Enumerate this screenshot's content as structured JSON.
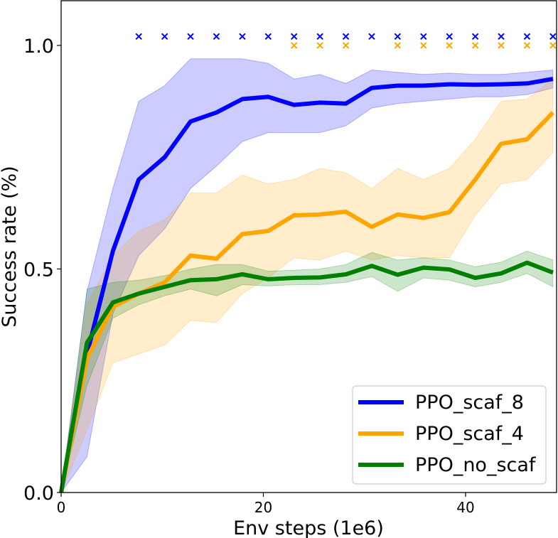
{
  "chart_data": {
    "type": "line",
    "title": "",
    "xlabel": "Env steps (1e6)",
    "ylabel": "Success rate (%)",
    "xlim": [
      0,
      49
    ],
    "ylim": [
      0.0,
      1.1
    ],
    "xticks": [
      0,
      20,
      40
    ],
    "yticks": [
      0.0,
      0.5,
      1.0
    ],
    "xtick_labels": [
      "0",
      "20",
      "40"
    ],
    "ytick_labels": [
      "0.0",
      "0.5",
      "1.0"
    ],
    "grid": false,
    "legend_position": "bottom-right",
    "x": [
      0,
      2.56,
      5.12,
      7.68,
      10.24,
      12.8,
      15.36,
      17.92,
      20.48,
      23.04,
      25.6,
      28.16,
      30.72,
      33.28,
      35.84,
      38.4,
      40.96,
      43.52,
      46.08,
      48.64
    ],
    "series": [
      {
        "name": "PPO_scaf_8",
        "color": "#0000ff",
        "values": [
          0.0,
          0.31,
          0.54,
          0.7,
          0.75,
          0.83,
          0.85,
          0.88,
          0.885,
          0.867,
          0.872,
          0.87,
          0.905,
          0.91,
          0.91,
          0.913,
          0.912,
          0.913,
          0.915,
          0.925
        ],
        "lower": [
          0.0,
          0.08,
          0.4,
          0.53,
          0.59,
          0.68,
          0.73,
          0.785,
          0.805,
          0.805,
          0.805,
          0.82,
          0.86,
          0.87,
          0.875,
          0.88,
          0.885,
          0.885,
          0.89,
          0.905
        ],
        "upper": [
          0.0,
          0.45,
          0.68,
          0.875,
          0.91,
          0.97,
          0.97,
          0.97,
          0.96,
          0.925,
          0.935,
          0.915,
          0.945,
          0.94,
          0.935,
          0.938,
          0.935,
          0.935,
          0.94,
          0.945
        ]
      },
      {
        "name": "PPO_scaf_4",
        "color": "#ffa500",
        "values": [
          0.0,
          0.3,
          0.415,
          0.445,
          0.47,
          0.53,
          0.523,
          0.578,
          0.585,
          0.62,
          0.622,
          0.628,
          0.594,
          0.622,
          0.614,
          0.627,
          0.7,
          0.78,
          0.79,
          0.85
        ],
        "lower": [
          0.0,
          0.14,
          0.29,
          0.31,
          0.33,
          0.385,
          0.38,
          0.445,
          0.48,
          0.525,
          0.52,
          0.54,
          0.52,
          0.53,
          0.525,
          0.525,
          0.62,
          0.69,
          0.7,
          0.76
        ],
        "upper": [
          0.0,
          0.42,
          0.53,
          0.585,
          0.61,
          0.67,
          0.67,
          0.71,
          0.69,
          0.7,
          0.725,
          0.715,
          0.68,
          0.725,
          0.7,
          0.725,
          0.79,
          0.875,
          0.88,
          0.925
        ]
      },
      {
        "name": "PPO_no_scaf",
        "color": "#008000",
        "values": [
          0.0,
          0.335,
          0.425,
          0.445,
          0.46,
          0.475,
          0.477,
          0.488,
          0.477,
          0.48,
          0.481,
          0.488,
          0.507,
          0.487,
          0.503,
          0.499,
          0.48,
          0.49,
          0.514,
          0.492
        ],
        "lower": [
          0.0,
          0.24,
          0.39,
          0.42,
          0.44,
          0.455,
          0.44,
          0.465,
          0.462,
          0.465,
          0.465,
          0.47,
          0.483,
          0.45,
          0.48,
          0.475,
          0.46,
          0.47,
          0.49,
          0.46
        ],
        "upper": [
          0.0,
          0.455,
          0.47,
          0.475,
          0.485,
          0.5,
          0.51,
          0.51,
          0.495,
          0.497,
          0.5,
          0.51,
          0.537,
          0.52,
          0.525,
          0.52,
          0.505,
          0.515,
          0.54,
          0.52
        ]
      }
    ],
    "markers": [
      {
        "series": "PPO_scaf_8",
        "symbol": "x",
        "y": 1.02,
        "x": [
          7.68,
          10.24,
          12.8,
          15.36,
          17.92,
          20.48,
          23.04,
          25.6,
          28.16,
          30.72,
          33.28,
          35.84,
          38.4,
          40.96,
          43.52,
          46.08,
          48.64
        ]
      },
      {
        "series": "PPO_scaf_4",
        "symbol": "x",
        "y": 1.0,
        "x": [
          23.04,
          25.6,
          28.16,
          33.28,
          35.84,
          38.4,
          40.96,
          43.52,
          46.08,
          48.64
        ]
      }
    ],
    "legend": [
      "PPO_scaf_8",
      "PPO_scaf_4",
      "PPO_no_scaf"
    ]
  }
}
